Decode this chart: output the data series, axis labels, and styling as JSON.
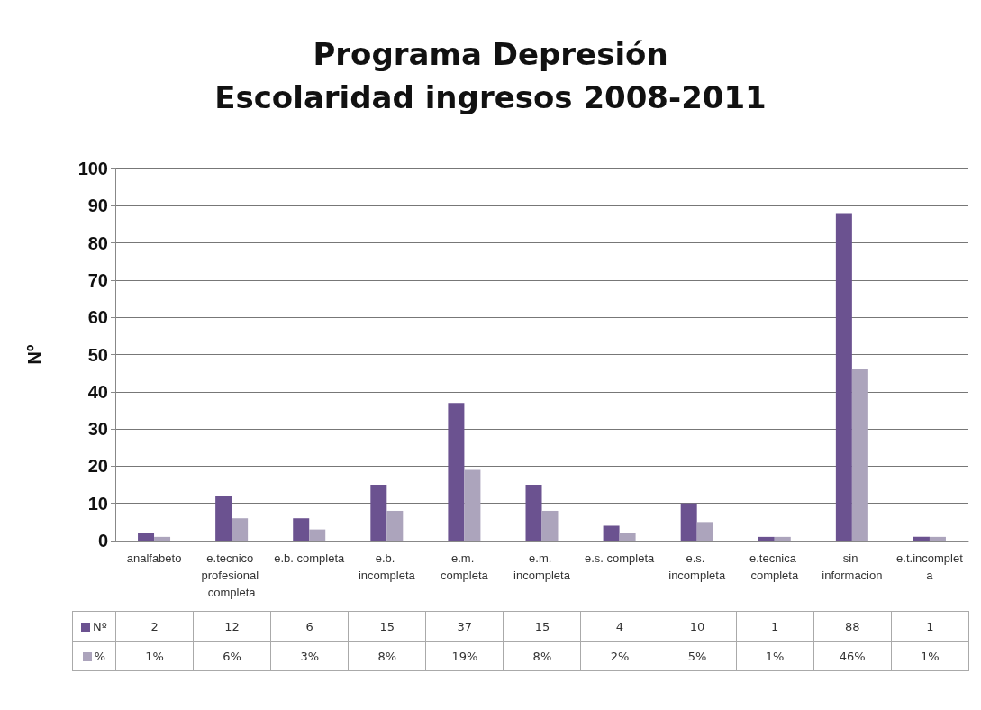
{
  "chart_data": {
    "type": "bar",
    "title": "Programa Depresión",
    "subtitle": "Escolaridad ingresos 2008-2011",
    "ylabel": "Nº",
    "categories": [
      "analfabeto",
      "e.tecnico profesional completa",
      "e.b. completa",
      "e.b. incompleta",
      "e.m. completa",
      "e.m. incompleta",
      "e.s. completa",
      "e.s. incompleta",
      "e.tecnica completa",
      "sin informacion",
      "e.t.incompleta"
    ],
    "series": [
      {
        "name": "Nº",
        "color": "#6b5290",
        "values": [
          2,
          12,
          6,
          15,
          37,
          15,
          4,
          10,
          1,
          88,
          1
        ],
        "value_labels": [
          "2",
          "12",
          "6",
          "15",
          "37",
          "15",
          "4",
          "10",
          "1",
          "88",
          "1"
        ]
      },
      {
        "name": "%",
        "color": "#aca4bc",
        "values": [
          1,
          6,
          3,
          8,
          19,
          8,
          2,
          5,
          1,
          46,
          1
        ],
        "value_labels": [
          "1%",
          "6%",
          "3%",
          "8%",
          "19%",
          "8%",
          "2%",
          "5%",
          "1%",
          "46%",
          "1%"
        ]
      }
    ],
    "ylim": [
      0,
      100
    ],
    "yticks": [
      0,
      10,
      20,
      30,
      40,
      50,
      60,
      70,
      80,
      90,
      100
    ],
    "grid": true,
    "legend": "bottom"
  }
}
